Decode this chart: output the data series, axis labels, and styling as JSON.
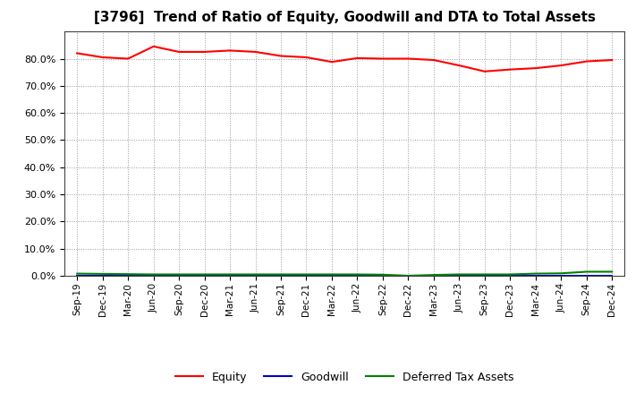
{
  "title": "[3796]  Trend of Ratio of Equity, Goodwill and DTA to Total Assets",
  "x_labels": [
    "Sep-19",
    "Dec-19",
    "Mar-20",
    "Jun-20",
    "Sep-20",
    "Dec-20",
    "Mar-21",
    "Jun-21",
    "Sep-21",
    "Dec-21",
    "Mar-22",
    "Jun-22",
    "Sep-22",
    "Dec-22",
    "Mar-23",
    "Jun-23",
    "Sep-23",
    "Dec-23",
    "Mar-24",
    "Jun-24",
    "Sep-24",
    "Dec-24"
  ],
  "equity": [
    82.0,
    80.5,
    80.0,
    84.5,
    82.5,
    82.5,
    83.0,
    82.5,
    81.0,
    80.5,
    78.8,
    80.2,
    80.0,
    80.0,
    79.5,
    77.5,
    75.3,
    76.0,
    76.5,
    77.5,
    79.0,
    79.5
  ],
  "goodwill": [
    0.0,
    0.0,
    0.0,
    0.0,
    0.0,
    0.0,
    0.0,
    0.0,
    0.0,
    0.0,
    0.0,
    0.0,
    0.0,
    0.0,
    0.0,
    0.0,
    0.0,
    0.0,
    0.0,
    0.0,
    0.0,
    0.0
  ],
  "dta": [
    0.8,
    0.7,
    0.6,
    0.5,
    0.5,
    0.5,
    0.5,
    0.5,
    0.5,
    0.5,
    0.5,
    0.5,
    0.4,
    0.0,
    0.3,
    0.5,
    0.5,
    0.5,
    0.8,
    0.9,
    1.5,
    1.5
  ],
  "equity_color": "#ff0000",
  "goodwill_color": "#0000cc",
  "dta_color": "#008000",
  "ylim": [
    0.0,
    90.0
  ],
  "yticks": [
    0.0,
    10.0,
    20.0,
    30.0,
    40.0,
    50.0,
    60.0,
    70.0,
    80.0
  ],
  "bg_color": "#ffffff",
  "plot_bg_color": "#ffffff",
  "grid_color": "#999999",
  "title_fontsize": 11,
  "legend_labels": [
    "Equity",
    "Goodwill",
    "Deferred Tax Assets"
  ]
}
